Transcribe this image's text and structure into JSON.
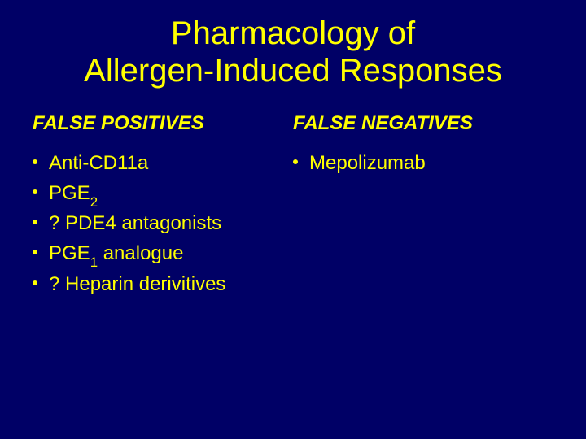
{
  "colors": {
    "background": "#000066",
    "text": "#ffff00"
  },
  "typography": {
    "title_fontsize": 40,
    "heading_fontsize": 24,
    "body_fontsize": 24
  },
  "title_line1": "Pharmacology of",
  "title_line2": "Allergen-Induced Responses",
  "left": {
    "heading": "FALSE POSITIVES",
    "items": [
      {
        "pre": "Anti-CD11a",
        "sub": "",
        "post": ""
      },
      {
        "pre": "PGE",
        "sub": "2",
        "post": ""
      },
      {
        "pre": "? PDE4 antagonists",
        "sub": "",
        "post": ""
      },
      {
        "pre": "PGE",
        "sub": "1",
        "post": " analogue"
      },
      {
        "pre": "? Heparin derivitives",
        "sub": "",
        "post": ""
      }
    ]
  },
  "right": {
    "heading": "FALSE NEGATIVES",
    "items": [
      {
        "pre": "Mepolizumab",
        "sub": "",
        "post": ""
      }
    ]
  }
}
